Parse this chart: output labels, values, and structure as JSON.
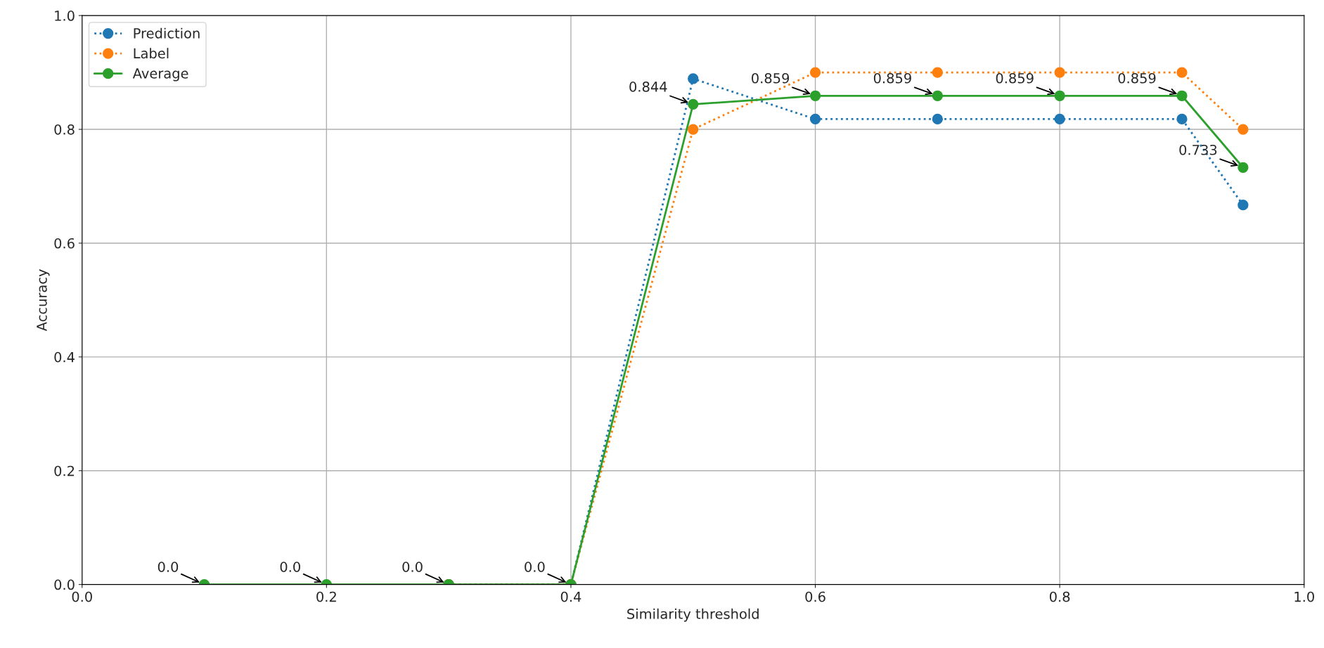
{
  "chart_data": {
    "type": "line",
    "xlabel": "Similarity threshold",
    "ylabel": "Accuracy",
    "x": [
      0.1,
      0.2,
      0.3,
      0.4,
      0.5,
      0.6,
      0.7,
      0.8,
      0.9,
      0.95
    ],
    "series": [
      {
        "name": "Prediction",
        "color": "#1f77b4",
        "line_style": "dotted",
        "values": [
          null,
          null,
          0,
          0,
          0.889,
          0.818,
          0.818,
          0.818,
          0.818,
          0.667
        ]
      },
      {
        "name": "Label",
        "color": "#ff7f0e",
        "line_style": "dotted",
        "values": [
          null,
          null,
          0,
          0,
          0.8,
          0.9,
          0.9,
          0.9,
          0.9,
          0.8
        ]
      },
      {
        "name": "Average",
        "color": "#2ca02c",
        "line_style": "solid",
        "values": [
          0,
          0,
          0,
          0,
          0.844,
          0.859,
          0.859,
          0.859,
          0.859,
          0.733
        ]
      }
    ],
    "annotations": [
      {
        "text": "0.0",
        "x": 0.1,
        "y": 0
      },
      {
        "text": "0.0",
        "x": 0.2,
        "y": 0
      },
      {
        "text": "0.0",
        "x": 0.3,
        "y": 0
      },
      {
        "text": "0.0",
        "x": 0.4,
        "y": 0
      },
      {
        "text": "0.844",
        "x": 0.5,
        "y": 0.844
      },
      {
        "text": "0.859",
        "x": 0.6,
        "y": 0.859
      },
      {
        "text": "0.859",
        "x": 0.7,
        "y": 0.859
      },
      {
        "text": "0.859",
        "x": 0.8,
        "y": 0.859
      },
      {
        "text": "0.859",
        "x": 0.9,
        "y": 0.859
      },
      {
        "text": "0.733",
        "x": 0.95,
        "y": 0.733
      }
    ],
    "xlim": [
      0.0,
      1.0
    ],
    "ylim": [
      0.0,
      1.0
    ],
    "xticks": [
      {
        "value": 0.0,
        "label": "0.0"
      },
      0.2,
      0.4,
      0.6,
      0.8,
      {
        "value": 1.0,
        "label": "1.0"
      }
    ],
    "yticks": [
      {
        "value": 0.0,
        "label": "0.0"
      },
      0.2,
      0.4,
      0.6,
      0.8,
      {
        "value": 1.0,
        "label": "1.0"
      }
    ],
    "marker": "circle",
    "grid": true,
    "legend": "top left"
  }
}
